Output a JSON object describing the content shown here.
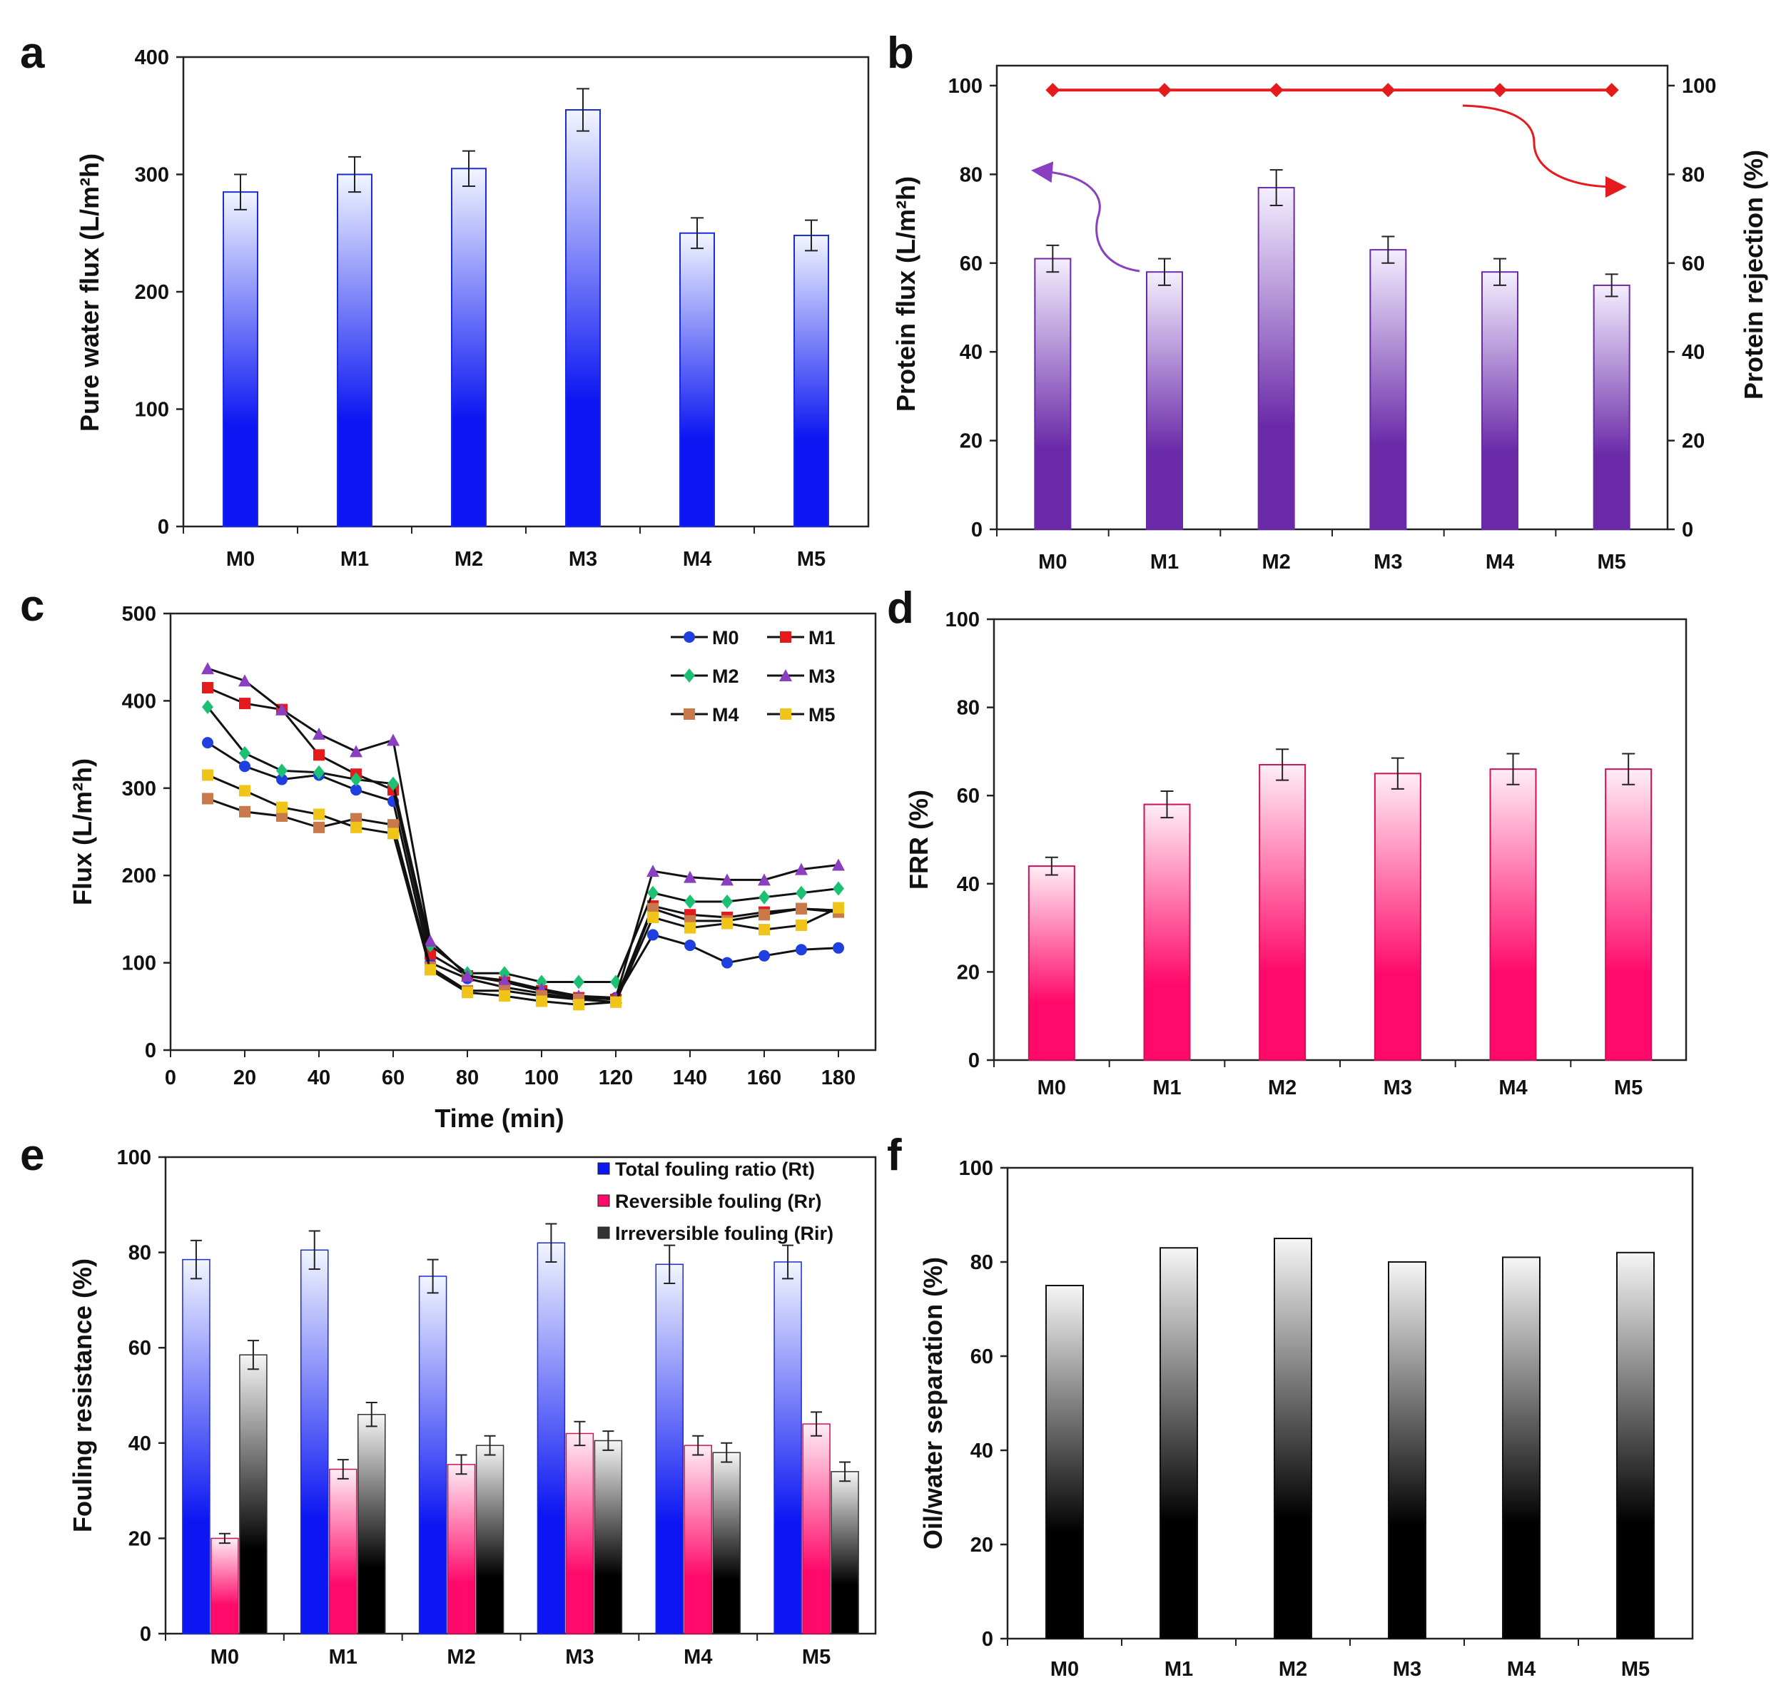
{
  "figure": {
    "colors": {
      "blue": "#0b16f2",
      "blue_light": "#f2f6ff",
      "purple": "#6a2aa8",
      "purple_light": "#f4efff",
      "pink": "#ff0a6a",
      "pink_light": "#ffeef5",
      "black": "#000000",
      "black_light": "#f6f6f6",
      "red": "#e41a1c",
      "line_colors": [
        "#1f3fe0",
        "#e41a1c",
        "#1dbf73",
        "#8a3fc0",
        "#c97a4a",
        "#f0c419"
      ]
    }
  },
  "chart_data": [
    {
      "id": "a",
      "panel_label": "a",
      "type": "bar",
      "categories": [
        "M0",
        "M1",
        "M2",
        "M3",
        "M4",
        "M5"
      ],
      "values": [
        285,
        300,
        305,
        355,
        250,
        248
      ],
      "errors": [
        15,
        15,
        15,
        18,
        13,
        13
      ],
      "ylabel": "Pure water flux (L/m²h)",
      "xlabel": "",
      "ylim": [
        0,
        400
      ],
      "yticks": [
        0,
        100,
        200,
        300,
        400
      ]
    },
    {
      "id": "b",
      "panel_label": "b",
      "type": "bar",
      "categories": [
        "M0",
        "M1",
        "M2",
        "M3",
        "M4",
        "M5"
      ],
      "values": [
        61,
        58,
        77,
        63,
        58,
        55
      ],
      "errors": [
        3,
        3,
        4,
        3,
        3,
        2.5
      ],
      "ylabel": "Protein flux (L/m²h)",
      "ylim": [
        0,
        100
      ],
      "yticks": [
        0,
        20,
        40,
        60,
        80,
        100
      ],
      "secondary": {
        "type": "line",
        "name": "Protein rejection",
        "values": [
          99,
          99,
          99,
          99,
          99,
          99
        ],
        "ylabel": "Protein rejection (%)",
        "ylim": [
          0,
          100
        ],
        "yticks": [
          0,
          20,
          40,
          60,
          80,
          100
        ]
      }
    },
    {
      "id": "c",
      "panel_label": "c",
      "type": "line",
      "x": [
        10,
        20,
        30,
        40,
        50,
        60,
        70,
        80,
        90,
        100,
        110,
        120,
        130,
        140,
        150,
        160,
        170,
        180
      ],
      "series": [
        {
          "name": "M0",
          "values": [
            352,
            325,
            310,
            315,
            298,
            285,
            100,
            82,
            72,
            65,
            58,
            60,
            132,
            120,
            100,
            108,
            115,
            117
          ]
        },
        {
          "name": "M1",
          "values": [
            415,
            397,
            390,
            338,
            316,
            298,
            110,
            85,
            78,
            68,
            60,
            58,
            165,
            155,
            152,
            158,
            162,
            160
          ]
        },
        {
          "name": "M2",
          "values": [
            393,
            340,
            320,
            318,
            310,
            305,
            120,
            88,
            88,
            78,
            78,
            78,
            180,
            170,
            170,
            175,
            180,
            185
          ]
        },
        {
          "name": "M3",
          "values": [
            437,
            423,
            390,
            362,
            342,
            355,
            125,
            85,
            80,
            70,
            62,
            60,
            205,
            198,
            195,
            195,
            207,
            212
          ]
        },
        {
          "name": "M4",
          "values": [
            288,
            273,
            268,
            255,
            265,
            258,
            95,
            68,
            68,
            62,
            58,
            55,
            162,
            148,
            148,
            155,
            162,
            158
          ]
        },
        {
          "name": "M5",
          "values": [
            315,
            297,
            278,
            270,
            255,
            248,
            92,
            66,
            62,
            56,
            52,
            55,
            152,
            140,
            145,
            138,
            143,
            163
          ]
        }
      ],
      "xlabel": "Time (min)",
      "ylabel": "Flux (L/m²h)",
      "xlim": [
        0,
        190
      ],
      "xticks": [
        0,
        20,
        40,
        60,
        80,
        100,
        120,
        140,
        160,
        180
      ],
      "ylim": [
        0,
        500
      ],
      "yticks": [
        0,
        100,
        200,
        300,
        400,
        500
      ],
      "legend_position": "top-right"
    },
    {
      "id": "d",
      "panel_label": "d",
      "type": "bar",
      "categories": [
        "M0",
        "M1",
        "M2",
        "M3",
        "M4",
        "M5"
      ],
      "values": [
        44,
        58,
        67,
        65,
        66,
        66
      ],
      "errors": [
        2,
        3,
        3.5,
        3.5,
        3.5,
        3.5
      ],
      "ylabel": "FRR (%)",
      "ylim": [
        0,
        100
      ],
      "yticks": [
        0,
        20,
        40,
        60,
        80,
        100
      ]
    },
    {
      "id": "e",
      "panel_label": "e",
      "type": "bar",
      "categories": [
        "M0",
        "M1",
        "M2",
        "M3",
        "M4",
        "M5"
      ],
      "series": [
        {
          "name": "Total fouling ratio (Rt)",
          "values": [
            78.5,
            80.5,
            75,
            82,
            77.5,
            78
          ],
          "errors": [
            4,
            4,
            3.5,
            4,
            4,
            3.5
          ]
        },
        {
          "name": "Reversible fouling (Rr)",
          "values": [
            20,
            34.5,
            35.5,
            42,
            39.5,
            44
          ],
          "errors": [
            1,
            2,
            2,
            2.5,
            2,
            2.5
          ]
        },
        {
          "name": "Irreversible fouling (Rir)",
          "values": [
            58.5,
            46,
            39.5,
            40.5,
            38,
            34
          ],
          "errors": [
            3,
            2.5,
            2,
            2,
            2,
            2
          ]
        }
      ],
      "ylabel": "Fouling resistance (%)",
      "ylim": [
        0,
        100
      ],
      "yticks": [
        0,
        20,
        40,
        60,
        80,
        100
      ],
      "legend_position": "top-right"
    },
    {
      "id": "f",
      "panel_label": "f",
      "type": "bar",
      "categories": [
        "M0",
        "M1",
        "M2",
        "M3",
        "M4",
        "M5"
      ],
      "values": [
        75,
        83,
        85,
        80,
        81,
        82
      ],
      "ylabel": "Oil/water separation (%)",
      "ylim": [
        0,
        100
      ],
      "yticks": [
        0,
        20,
        40,
        60,
        80,
        100
      ]
    }
  ]
}
